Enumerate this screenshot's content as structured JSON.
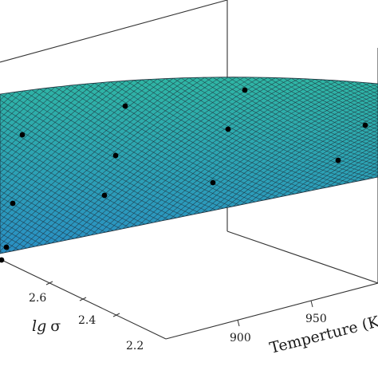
{
  "chart_data": {
    "type": "surface3d",
    "title": "",
    "xlabel": "Temperture (K)",
    "ylabel": "lg σ",
    "ylabel_parts": {
      "var": "lg",
      "sym": "σ"
    },
    "zlabel": "",
    "x_ticks": [
      "900",
      "950"
    ],
    "y_ticks": [
      "2.2",
      "2.4",
      "2.6"
    ],
    "grid": false,
    "colormap": [
      "#2fb6a4",
      "#2a8fc4"
    ],
    "edge_color": "#1f2f3a",
    "marker_color": "#000000",
    "points_count_visible": 12
  }
}
